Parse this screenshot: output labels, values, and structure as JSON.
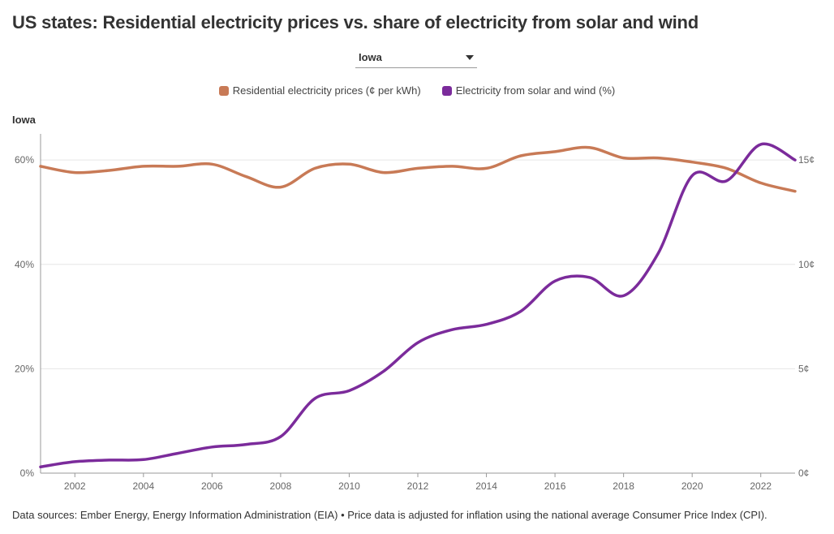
{
  "title": "US states: Residential electricity prices vs. share of electricity from solar and wind",
  "dropdown": {
    "selected": "Iowa"
  },
  "legend": {
    "price_label": "Residential electricity prices (¢ per kWh)",
    "solar_label": "Electricity from solar and wind (%)"
  },
  "panel_title": "Iowa",
  "footer": "Data sources: Ember Energy, Energy Information Administration (EIA) • Price data is adjusted for inflation using the national average Consumer Price Index (CPI).",
  "colors": {
    "price": "#C87A56",
    "solar": "#7B2B9B",
    "grid": "#E6E6E6",
    "axis": "#666666"
  },
  "chart_data": {
    "type": "line",
    "x": [
      2001,
      2002,
      2003,
      2004,
      2005,
      2006,
      2007,
      2008,
      2009,
      2010,
      2011,
      2012,
      2013,
      2014,
      2015,
      2016,
      2017,
      2018,
      2019,
      2020,
      2021,
      2022,
      2023
    ],
    "x_ticks": [
      "2002",
      "2004",
      "2006",
      "2008",
      "2010",
      "2012",
      "2014",
      "2016",
      "2018",
      "2020",
      "2022"
    ],
    "xlim": [
      2001,
      2023
    ],
    "y_left": {
      "ticks": [
        "0%",
        "20%",
        "40%",
        "60%"
      ],
      "lim": [
        0,
        65
      ]
    },
    "y_right": {
      "ticks": [
        "0¢",
        "5¢",
        "10¢",
        "15¢"
      ],
      "lim": [
        0,
        16.25
      ]
    },
    "series": [
      {
        "name": "Residential electricity prices (¢ per kWh)",
        "axis": "right",
        "color": "#C87A56",
        "values": [
          14.7,
          14.4,
          14.5,
          14.7,
          14.7,
          14.8,
          14.2,
          13.7,
          14.6,
          14.8,
          14.4,
          14.6,
          14.7,
          14.6,
          15.2,
          15.4,
          15.6,
          15.1,
          15.1,
          14.9,
          14.6,
          13.9,
          13.5
        ]
      },
      {
        "name": "Electricity from solar and wind (%)",
        "axis": "left",
        "color": "#7B2B9B",
        "values": [
          1.2,
          2.2,
          2.5,
          2.6,
          3.8,
          5.0,
          5.5,
          7.0,
          14.3,
          15.8,
          19.5,
          25.0,
          27.5,
          28.5,
          31.0,
          36.8,
          37.5,
          34.0,
          42.0,
          57.0,
          56.0,
          63.0,
          60.0
        ]
      }
    ]
  }
}
